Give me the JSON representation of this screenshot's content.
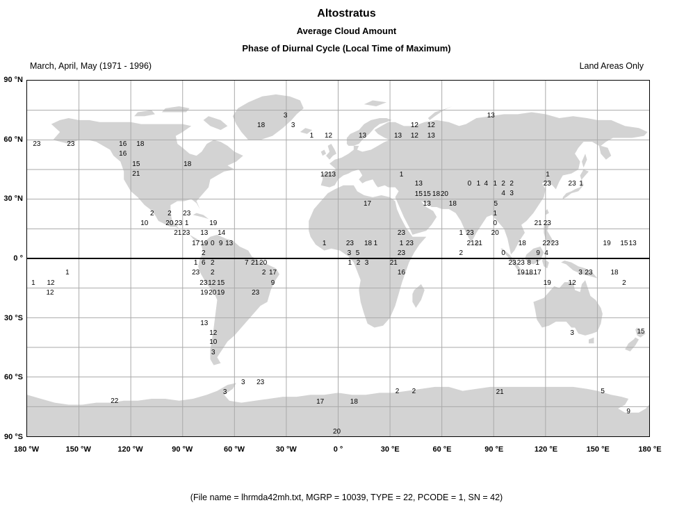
{
  "header": {
    "title": "Altostratus",
    "subtitle1": "Average Cloud Amount",
    "subtitle2": "Phase of Diurnal Cycle (Local Time of Maximum)",
    "period": "March, April, May (1971 - 1996)",
    "coverage_note": "Land Areas Only"
  },
  "footer": {
    "text": "(File name = lhrmda42mh.txt, MGRP = 10039, TYPE = 22, PCODE = 1, SN = 42)"
  },
  "colors": {
    "land": "#d3d3d3",
    "grid": "#aaaaaa",
    "equator": "#000000",
    "frame": "#000000",
    "text": "#000000",
    "background": "#ffffff"
  },
  "chart_data": {
    "type": "scatter",
    "title": "Altostratus",
    "subtitles": [
      "Average Cloud Amount",
      "Phase of Diurnal Cycle (Local Time of Maximum)"
    ],
    "note_left": "March, April, May (1971 - 1996)",
    "note_right": "Land Areas Only",
    "projection": "equirectangular",
    "xlabel": "Longitude",
    "ylabel": "Latitude",
    "xlim": [
      -180,
      180
    ],
    "ylim": [
      -90,
      90
    ],
    "x_ticks": [
      "180 °W",
      "150 °W",
      "120 °W",
      "90 °W",
      "60 °W",
      "30 °W",
      "0 °",
      "30 °E",
      "60 °E",
      "90 °E",
      "120 °E",
      "150 °E",
      "180 °E"
    ],
    "y_ticks": [
      "90 °N",
      "60 °N",
      "30 °N",
      "0 °",
      "30 °S",
      "60 °S",
      "90 °S"
    ],
    "grid": {
      "lon_step_deg": 30,
      "lat_step_deg": 15,
      "equator_emphasized": true
    },
    "point_format": "[longitude_deg, latitude_deg, local_time_of_maximum_hour_label]",
    "points": [
      [
        -30.5,
        72.1,
        "3"
      ],
      [
        88.4,
        72.1,
        "13"
      ],
      [
        -44.6,
        67.1,
        "18"
      ],
      [
        -26.1,
        67.1,
        "3"
      ],
      [
        44.2,
        67.1,
        "12"
      ],
      [
        53.8,
        67.1,
        "12"
      ],
      [
        -15.3,
        61.9,
        "1"
      ],
      [
        -5.6,
        61.9,
        "12"
      ],
      [
        14.1,
        61.9,
        "13"
      ],
      [
        34.6,
        61.9,
        "13"
      ],
      [
        44.2,
        61.9,
        "12"
      ],
      [
        53.8,
        61.9,
        "13"
      ],
      [
        -174.4,
        57.7,
        "23"
      ],
      [
        -154.7,
        57.7,
        "23"
      ],
      [
        -124.6,
        57.7,
        "16"
      ],
      [
        -114.5,
        57.7,
        "18"
      ],
      [
        -124.6,
        52.7,
        "16"
      ],
      [
        -116.9,
        47.5,
        "15"
      ],
      [
        -87.2,
        47.5,
        "18"
      ],
      [
        -116.9,
        42.5,
        "21"
      ],
      [
        -8.0,
        42.2,
        "12"
      ],
      [
        -3.6,
        42.2,
        "13"
      ],
      [
        36.6,
        42.2,
        "1"
      ],
      [
        121.3,
        42.2,
        "1"
      ],
      [
        46.6,
        37.6,
        "13"
      ],
      [
        76.0,
        37.6,
        "0"
      ],
      [
        81.2,
        37.6,
        "1"
      ],
      [
        85.6,
        37.6,
        "4"
      ],
      [
        90.8,
        37.6,
        "1"
      ],
      [
        95.6,
        37.6,
        "2"
      ],
      [
        100.4,
        37.6,
        "2"
      ],
      [
        121.0,
        37.6,
        "23"
      ],
      [
        135.4,
        37.6,
        "23"
      ],
      [
        140.6,
        37.6,
        "1"
      ],
      [
        95.6,
        32.7,
        "4"
      ],
      [
        100.4,
        32.7,
        "3"
      ],
      [
        46.6,
        32.3,
        "15"
      ],
      [
        51.4,
        32.3,
        "15"
      ],
      [
        56.7,
        32.3,
        "18"
      ],
      [
        61.5,
        32.3,
        "20"
      ],
      [
        16.9,
        27.4,
        "17"
      ],
      [
        51.4,
        27.4,
        "13"
      ],
      [
        66.3,
        27.4,
        "18"
      ],
      [
        91.2,
        27.4,
        "5"
      ],
      [
        -107.7,
        22.5,
        "2"
      ],
      [
        -97.6,
        22.5,
        "2"
      ],
      [
        -87.6,
        22.5,
        "23"
      ],
      [
        90.8,
        22.5,
        "1"
      ],
      [
        -112.1,
        17.6,
        "10"
      ],
      [
        -97.6,
        17.6,
        "20"
      ],
      [
        -92.4,
        17.6,
        "23"
      ],
      [
        -87.6,
        17.6,
        "1"
      ],
      [
        -72.3,
        17.6,
        "19"
      ],
      [
        90.8,
        17.6,
        "0"
      ],
      [
        115.7,
        17.6,
        "21"
      ],
      [
        121.0,
        17.6,
        "23"
      ],
      [
        -92.8,
        12.7,
        "21"
      ],
      [
        -88.0,
        12.7,
        "23"
      ],
      [
        -77.5,
        12.7,
        "13"
      ],
      [
        -67.5,
        12.7,
        "14"
      ],
      [
        36.6,
        12.7,
        "23"
      ],
      [
        71.1,
        12.7,
        "1"
      ],
      [
        76.3,
        12.7,
        "23"
      ],
      [
        90.8,
        12.7,
        "20"
      ],
      [
        -82.4,
        7.4,
        "17"
      ],
      [
        -77.5,
        7.4,
        "19"
      ],
      [
        -72.7,
        7.4,
        "0"
      ],
      [
        -67.9,
        7.4,
        "9"
      ],
      [
        -63.1,
        7.4,
        "13"
      ],
      [
        -8.0,
        7.4,
        "1"
      ],
      [
        6.8,
        7.4,
        "23"
      ],
      [
        17.3,
        7.4,
        "18"
      ],
      [
        21.7,
        7.4,
        "1"
      ],
      [
        36.6,
        7.4,
        "1"
      ],
      [
        41.4,
        7.4,
        "23"
      ],
      [
        76.7,
        7.4,
        "21"
      ],
      [
        81.2,
        7.4,
        "21"
      ],
      [
        106.5,
        7.4,
        "18"
      ],
      [
        120.5,
        7.4,
        "22"
      ],
      [
        125.4,
        7.4,
        "23"
      ],
      [
        155.5,
        7.4,
        "19"
      ],
      [
        165.5,
        7.4,
        "15"
      ],
      [
        170.4,
        7.4,
        "13"
      ],
      [
        -77.9,
        2.5,
        "2"
      ],
      [
        6.4,
        2.5,
        "3"
      ],
      [
        11.3,
        2.5,
        "5"
      ],
      [
        36.6,
        2.5,
        "23"
      ],
      [
        71.1,
        2.5,
        "2"
      ],
      [
        95.6,
        2.5,
        "0"
      ],
      [
        115.7,
        2.5,
        "9"
      ],
      [
        120.5,
        2.5,
        "4"
      ],
      [
        -82.4,
        -2.5,
        "1"
      ],
      [
        -77.9,
        -2.5,
        "6"
      ],
      [
        -72.7,
        -2.5,
        "2"
      ],
      [
        -53.0,
        -2.5,
        "7"
      ],
      [
        -48.2,
        -2.5,
        "21"
      ],
      [
        -43.4,
        -2.5,
        "20"
      ],
      [
        6.8,
        -2.5,
        "1"
      ],
      [
        11.7,
        -2.5,
        "2"
      ],
      [
        16.5,
        -2.5,
        "3"
      ],
      [
        32.1,
        -2.5,
        "21"
      ],
      [
        100.8,
        -2.5,
        "23"
      ],
      [
        105.7,
        -2.5,
        "23"
      ],
      [
        110.5,
        -2.5,
        "8"
      ],
      [
        115.3,
        -2.5,
        "1"
      ],
      [
        -156.7,
        -7.4,
        "1"
      ],
      [
        -82.4,
        -7.4,
        "23"
      ],
      [
        -72.7,
        -7.4,
        "2"
      ],
      [
        -43.0,
        -7.4,
        "2"
      ],
      [
        -37.8,
        -7.4,
        "17"
      ],
      [
        36.6,
        -7.4,
        "16"
      ],
      [
        105.7,
        -7.4,
        "19"
      ],
      [
        110.5,
        -7.4,
        "18"
      ],
      [
        115.3,
        -7.4,
        "17"
      ],
      [
        140.2,
        -7.4,
        "3"
      ],
      [
        145.0,
        -7.4,
        "23"
      ],
      [
        159.9,
        -7.4,
        "18"
      ],
      [
        -176.4,
        -12.7,
        "1"
      ],
      [
        -166.3,
        -12.7,
        "12"
      ],
      [
        -77.9,
        -12.7,
        "23"
      ],
      [
        -73.1,
        -12.7,
        "12"
      ],
      [
        -67.9,
        -12.7,
        "15"
      ],
      [
        -37.8,
        -12.7,
        "9"
      ],
      [
        121.0,
        -12.7,
        "19"
      ],
      [
        135.4,
        -12.7,
        "12"
      ],
      [
        165.5,
        -12.7,
        "2"
      ],
      [
        -166.7,
        -17.6,
        "12"
      ],
      [
        -77.5,
        -17.6,
        "19"
      ],
      [
        -72.7,
        -17.6,
        "20"
      ],
      [
        -67.9,
        -17.6,
        "19"
      ],
      [
        -47.8,
        -17.6,
        "23"
      ],
      [
        -77.5,
        -33.0,
        "13"
      ],
      [
        -72.3,
        -38.0,
        "12"
      ],
      [
        135.4,
        -38.0,
        "3"
      ],
      [
        175.2,
        -37.3,
        "15"
      ],
      [
        -72.3,
        -42.5,
        "10"
      ],
      [
        -72.3,
        -47.8,
        "3"
      ],
      [
        -55.0,
        -62.9,
        "3"
      ],
      [
        -45.0,
        -62.9,
        "23"
      ],
      [
        -65.5,
        -67.9,
        "3"
      ],
      [
        34.2,
        -67.5,
        "2"
      ],
      [
        43.8,
        -67.5,
        "2"
      ],
      [
        93.6,
        -67.9,
        "21"
      ],
      [
        153.1,
        -67.5,
        "5"
      ],
      [
        -129.4,
        -72.4,
        "22"
      ],
      [
        -10.4,
        -72.8,
        "17"
      ],
      [
        9.2,
        -72.8,
        "18"
      ],
      [
        168.0,
        -77.7,
        "9"
      ],
      [
        -0.8,
        -87.9,
        "20"
      ]
    ]
  }
}
